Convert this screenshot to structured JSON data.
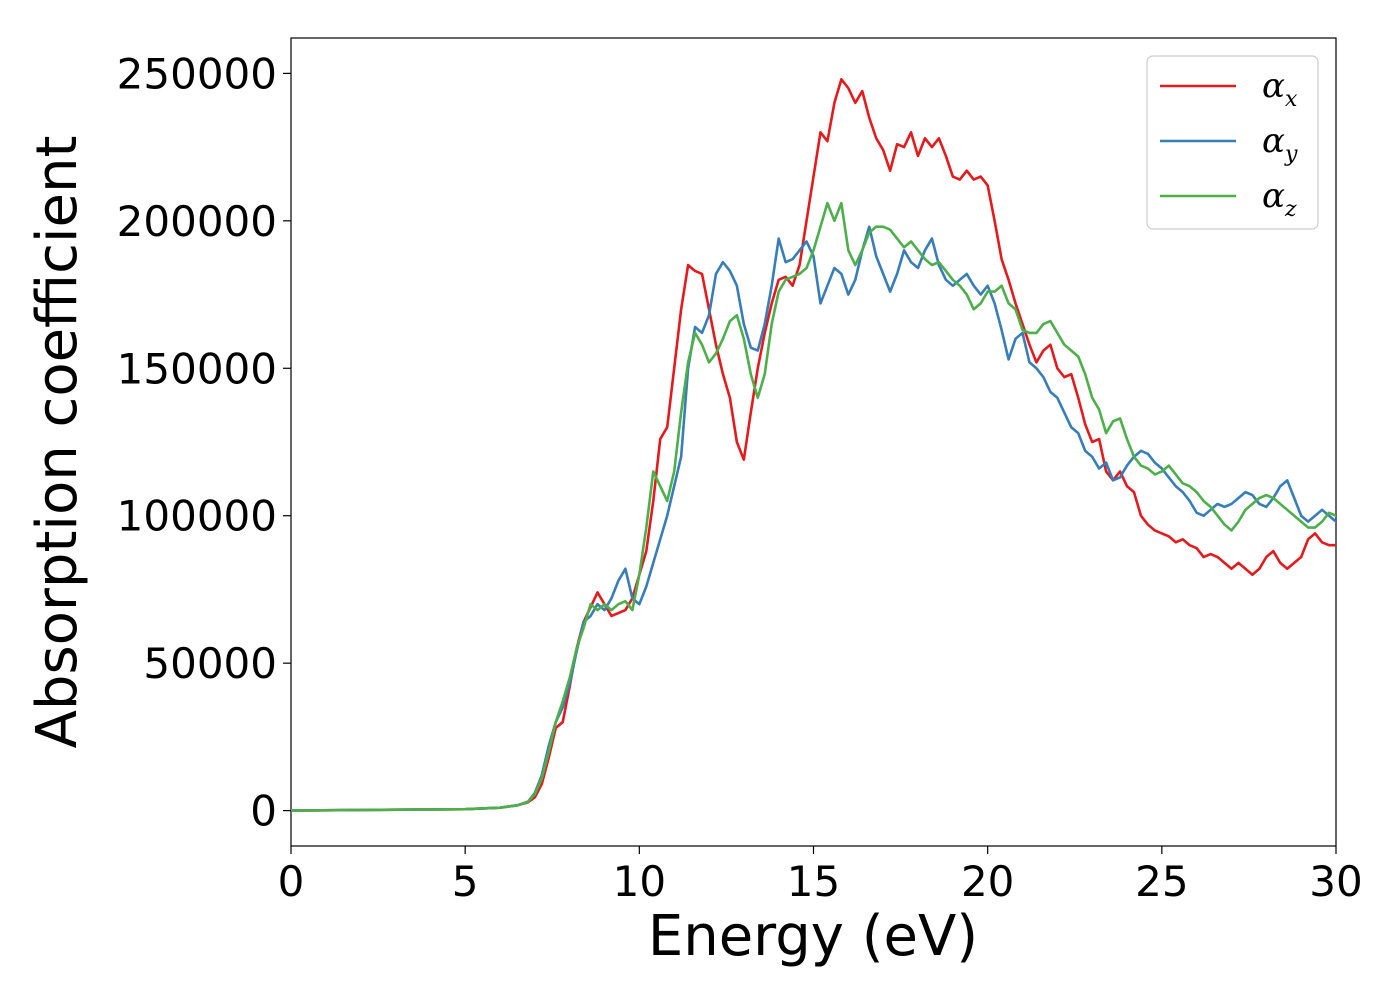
{
  "chart_data": {
    "type": "line",
    "title": "",
    "xlabel": "Energy (eV)",
    "ylabel": "Absorption coefficient",
    "xlim": [
      0,
      30
    ],
    "ylim": [
      -12000,
      262000
    ],
    "xticks": [
      0,
      5,
      10,
      15,
      20,
      25,
      30
    ],
    "yticks": [
      0,
      50000,
      100000,
      150000,
      200000,
      250000
    ],
    "xtick_labels": [
      "0",
      "5",
      "10",
      "15",
      "20",
      "25",
      "30"
    ],
    "ytick_labels": [
      "0",
      "50000",
      "100000",
      "150000",
      "200000",
      "250000"
    ],
    "grid": false,
    "legend_position": "top-right",
    "series": [
      {
        "name": "αx",
        "symbol": "α",
        "subscript": "x",
        "color": "#e41a1c",
        "x": [
          0,
          5,
          6,
          6.5,
          6.8,
          7.0,
          7.2,
          7.4,
          7.6,
          7.8,
          8.0,
          8.2,
          8.4,
          8.6,
          8.8,
          9.0,
          9.2,
          9.4,
          9.6,
          9.8,
          10.0,
          10.2,
          10.4,
          10.6,
          10.8,
          11.0,
          11.2,
          11.4,
          11.6,
          11.8,
          12.0,
          12.2,
          12.4,
          12.6,
          12.8,
          13.0,
          13.2,
          13.4,
          13.6,
          13.8,
          14.0,
          14.2,
          14.4,
          14.6,
          14.8,
          15.0,
          15.2,
          15.4,
          15.6,
          15.8,
          16.0,
          16.2,
          16.4,
          16.6,
          16.8,
          17.0,
          17.2,
          17.4,
          17.6,
          17.8,
          18.0,
          18.2,
          18.4,
          18.6,
          18.8,
          19.0,
          19.2,
          19.4,
          19.6,
          19.8,
          20.0,
          20.2,
          20.4,
          20.6,
          20.8,
          21.0,
          21.2,
          21.4,
          21.6,
          21.8,
          22.0,
          22.2,
          22.4,
          22.6,
          22.8,
          23.0,
          23.2,
          23.4,
          23.6,
          23.8,
          24.0,
          24.2,
          24.4,
          24.6,
          24.8,
          25.0,
          25.2,
          25.4,
          25.6,
          25.8,
          26.0,
          26.2,
          26.4,
          26.6,
          26.8,
          27.0,
          27.2,
          27.4,
          27.6,
          27.8,
          28.0,
          28.2,
          28.4,
          28.6,
          28.8,
          29.0,
          29.2,
          29.4,
          29.6,
          29.8,
          30.0
        ],
        "y": [
          0,
          500,
          1000,
          1800,
          2800,
          4500,
          9000,
          18000,
          28000,
          30000,
          42000,
          55000,
          64000,
          69000,
          74000,
          70000,
          66000,
          67000,
          68000,
          72000,
          80000,
          88000,
          105000,
          126000,
          130000,
          150000,
          170000,
          185000,
          183000,
          182000,
          170000,
          158000,
          148000,
          140000,
          125000,
          119000,
          135000,
          150000,
          162000,
          172000,
          180000,
          181000,
          178000,
          185000,
          200000,
          215000,
          230000,
          227000,
          240000,
          248000,
          245000,
          240000,
          244000,
          235000,
          228000,
          224000,
          217000,
          226000,
          225000,
          230000,
          222000,
          228000,
          225000,
          228000,
          222000,
          215000,
          214000,
          217000,
          214000,
          215000,
          212000,
          200000,
          187000,
          180000,
          172000,
          165000,
          158000,
          152000,
          156000,
          158000,
          150000,
          147000,
          148000,
          140000,
          131000,
          125000,
          126000,
          115000,
          112000,
          115000,
          110000,
          108000,
          100000,
          97000,
          95000,
          94000,
          93000,
          91000,
          92000,
          90000,
          89000,
          86000,
          87000,
          86000,
          84000,
          82000,
          84000,
          82000,
          80000,
          82000,
          86000,
          88000,
          84000,
          82000,
          84000,
          86000,
          92000,
          94000,
          91000,
          90000,
          90000
        ]
      },
      {
        "name": "αy",
        "symbol": "α",
        "subscript": "y",
        "color": "#377eb8",
        "x": [
          0,
          5,
          6,
          6.5,
          6.8,
          7.0,
          7.2,
          7.4,
          7.6,
          7.8,
          8.0,
          8.2,
          8.4,
          8.6,
          8.8,
          9.0,
          9.2,
          9.4,
          9.6,
          9.8,
          10.0,
          10.2,
          10.4,
          10.6,
          10.8,
          11.0,
          11.2,
          11.4,
          11.6,
          11.8,
          12.0,
          12.2,
          12.4,
          12.6,
          12.8,
          13.0,
          13.2,
          13.4,
          13.6,
          13.8,
          14.0,
          14.2,
          14.4,
          14.6,
          14.8,
          15.0,
          15.2,
          15.4,
          15.6,
          15.8,
          16.0,
          16.2,
          16.4,
          16.6,
          16.8,
          17.0,
          17.2,
          17.4,
          17.6,
          17.8,
          18.0,
          18.2,
          18.4,
          18.6,
          18.8,
          19.0,
          19.2,
          19.4,
          19.6,
          19.8,
          20.0,
          20.2,
          20.4,
          20.6,
          20.8,
          21.0,
          21.2,
          21.4,
          21.6,
          21.8,
          22.0,
          22.2,
          22.4,
          22.6,
          22.8,
          23.0,
          23.2,
          23.4,
          23.6,
          23.8,
          24.0,
          24.2,
          24.4,
          24.6,
          24.8,
          25.0,
          25.2,
          25.4,
          25.6,
          25.8,
          26.0,
          26.2,
          26.4,
          26.6,
          26.8,
          27.0,
          27.2,
          27.4,
          27.6,
          27.8,
          28.0,
          28.2,
          28.4,
          28.6,
          28.8,
          29.0,
          29.2,
          29.4,
          29.6,
          29.8,
          30.0
        ],
        "y": [
          0,
          500,
          1000,
          1800,
          3000,
          6000,
          12000,
          22000,
          30000,
          35000,
          43000,
          54000,
          64000,
          66000,
          70000,
          68000,
          72000,
          78000,
          82000,
          72000,
          70000,
          76000,
          84000,
          92000,
          100000,
          110000,
          120000,
          150000,
          164000,
          162000,
          168000,
          182000,
          186000,
          183000,
          178000,
          165000,
          157000,
          156000,
          165000,
          178000,
          194000,
          186000,
          187000,
          190000,
          193000,
          188000,
          172000,
          178000,
          184000,
          182000,
          175000,
          180000,
          190000,
          198000,
          188000,
          182000,
          176000,
          182000,
          190000,
          186000,
          184000,
          190000,
          194000,
          185000,
          180000,
          178000,
          180000,
          182000,
          178000,
          175000,
          178000,
          172000,
          163000,
          153000,
          160000,
          162000,
          152000,
          150000,
          147000,
          142000,
          140000,
          135000,
          130000,
          128000,
          122000,
          120000,
          116000,
          118000,
          112000,
          113000,
          117000,
          120000,
          122000,
          121000,
          118000,
          116000,
          113000,
          110000,
          108000,
          105000,
          101000,
          100000,
          102000,
          104000,
          103000,
          104000,
          106000,
          108000,
          107000,
          104000,
          103000,
          106000,
          110000,
          112000,
          106000,
          100000,
          98000,
          100000,
          102000,
          100000,
          98000
        ]
      },
      {
        "name": "αz",
        "symbol": "α",
        "subscript": "z",
        "color": "#4daf4a",
        "x": [
          0,
          5,
          6,
          6.5,
          6.8,
          7.0,
          7.2,
          7.4,
          7.6,
          7.8,
          8.0,
          8.2,
          8.4,
          8.6,
          8.8,
          9.0,
          9.2,
          9.4,
          9.6,
          9.8,
          10.0,
          10.2,
          10.4,
          10.6,
          10.8,
          11.0,
          11.2,
          11.4,
          11.6,
          11.8,
          12.0,
          12.2,
          12.4,
          12.6,
          12.8,
          13.0,
          13.2,
          13.4,
          13.6,
          13.8,
          14.0,
          14.2,
          14.4,
          14.6,
          14.8,
          15.0,
          15.2,
          15.4,
          15.6,
          15.8,
          16.0,
          16.2,
          16.4,
          16.6,
          16.8,
          17.0,
          17.2,
          17.4,
          17.6,
          17.8,
          18.0,
          18.2,
          18.4,
          18.6,
          18.8,
          19.0,
          19.2,
          19.4,
          19.6,
          19.8,
          20.0,
          20.2,
          20.4,
          20.6,
          20.8,
          21.0,
          21.2,
          21.4,
          21.6,
          21.8,
          22.0,
          22.2,
          22.4,
          22.6,
          22.8,
          23.0,
          23.2,
          23.4,
          23.6,
          23.8,
          24.0,
          24.2,
          24.4,
          24.6,
          24.8,
          25.0,
          25.2,
          25.4,
          25.6,
          25.8,
          26.0,
          26.2,
          26.4,
          26.6,
          26.8,
          27.0,
          27.2,
          27.4,
          27.6,
          27.8,
          28.0,
          28.2,
          28.4,
          28.6,
          28.8,
          29.0,
          29.2,
          29.4,
          29.6,
          29.8,
          30.0
        ],
        "y": [
          0,
          500,
          1000,
          1800,
          3000,
          5500,
          11000,
          20000,
          30000,
          37000,
          45000,
          55000,
          62000,
          70000,
          68000,
          70000,
          68000,
          70000,
          71000,
          68000,
          80000,
          96000,
          115000,
          110000,
          105000,
          115000,
          135000,
          152000,
          162000,
          158000,
          152000,
          155000,
          160000,
          166000,
          168000,
          160000,
          148000,
          140000,
          148000,
          165000,
          176000,
          180000,
          181000,
          182000,
          184000,
          190000,
          198000,
          206000,
          200000,
          206000,
          190000,
          185000,
          190000,
          196000,
          198000,
          198000,
          197000,
          194000,
          191000,
          193000,
          190000,
          187000,
          185000,
          186000,
          183000,
          180000,
          178000,
          175000,
          170000,
          172000,
          176000,
          176000,
          178000,
          172000,
          170000,
          163000,
          162000,
          162000,
          165000,
          166000,
          162000,
          158000,
          156000,
          154000,
          148000,
          140000,
          136000,
          128000,
          132000,
          133000,
          126000,
          120000,
          117000,
          116000,
          114000,
          115000,
          117000,
          114000,
          111000,
          110000,
          108000,
          105000,
          103000,
          100000,
          97000,
          95000,
          98000,
          102000,
          104000,
          106000,
          107000,
          106000,
          104000,
          102000,
          100000,
          98000,
          96000,
          96000,
          98000,
          101000,
          100000
        ]
      }
    ]
  }
}
